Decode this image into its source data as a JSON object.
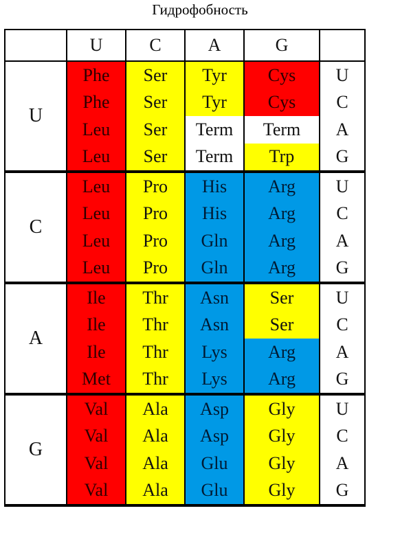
{
  "title": "Гидрофобность",
  "header": [
    "U",
    "C",
    "A",
    "G"
  ],
  "colors": {
    "red": "#ff0000",
    "yellow": "#ffff00",
    "blue": "#0099e6",
    "white": "#ffffff"
  },
  "blocks": [
    {
      "first": "U",
      "rows": [
        {
          "cells": [
            {
              "aa": "Phe",
              "color": "red"
            },
            {
              "aa": "Ser",
              "color": "yellow"
            },
            {
              "aa": "Tyr",
              "color": "yellow"
            },
            {
              "aa": "Cys",
              "color": "red"
            }
          ],
          "third": "U"
        },
        {
          "cells": [
            {
              "aa": "Phe",
              "color": "red"
            },
            {
              "aa": "Ser",
              "color": "yellow"
            },
            {
              "aa": "Tyr",
              "color": "yellow"
            },
            {
              "aa": "Cys",
              "color": "red"
            }
          ],
          "third": "C"
        },
        {
          "cells": [
            {
              "aa": "Leu",
              "color": "red"
            },
            {
              "aa": "Ser",
              "color": "yellow"
            },
            {
              "aa": "Term",
              "color": "white"
            },
            {
              "aa": "Term",
              "color": "white"
            }
          ],
          "third": "A"
        },
        {
          "cells": [
            {
              "aa": "Leu",
              "color": "red"
            },
            {
              "aa": "Ser",
              "color": "yellow"
            },
            {
              "aa": "Term",
              "color": "white"
            },
            {
              "aa": "Trp",
              "color": "yellow"
            }
          ],
          "third": "G"
        }
      ]
    },
    {
      "first": "C",
      "rows": [
        {
          "cells": [
            {
              "aa": "Leu",
              "color": "red"
            },
            {
              "aa": "Pro",
              "color": "yellow"
            },
            {
              "aa": "His",
              "color": "blue"
            },
            {
              "aa": "Arg",
              "color": "blue"
            }
          ],
          "third": "U"
        },
        {
          "cells": [
            {
              "aa": "Leu",
              "color": "red"
            },
            {
              "aa": "Pro",
              "color": "yellow"
            },
            {
              "aa": "His",
              "color": "blue"
            },
            {
              "aa": "Arg",
              "color": "blue"
            }
          ],
          "third": "C"
        },
        {
          "cells": [
            {
              "aa": "Leu",
              "color": "red"
            },
            {
              "aa": "Pro",
              "color": "yellow"
            },
            {
              "aa": "Gln",
              "color": "blue"
            },
            {
              "aa": "Arg",
              "color": "blue"
            }
          ],
          "third": "A"
        },
        {
          "cells": [
            {
              "aa": "Leu",
              "color": "red"
            },
            {
              "aa": "Pro",
              "color": "yellow"
            },
            {
              "aa": "Gln",
              "color": "blue"
            },
            {
              "aa": "Arg",
              "color": "blue"
            }
          ],
          "third": "G"
        }
      ]
    },
    {
      "first": "A",
      "rows": [
        {
          "cells": [
            {
              "aa": "Ile",
              "color": "red"
            },
            {
              "aa": "Thr",
              "color": "yellow"
            },
            {
              "aa": "Asn",
              "color": "blue"
            },
            {
              "aa": "Ser",
              "color": "yellow"
            }
          ],
          "third": "U"
        },
        {
          "cells": [
            {
              "aa": "Ile",
              "color": "red"
            },
            {
              "aa": "Thr",
              "color": "yellow"
            },
            {
              "aa": "Asn",
              "color": "blue"
            },
            {
              "aa": "Ser",
              "color": "yellow"
            }
          ],
          "third": "C"
        },
        {
          "cells": [
            {
              "aa": "Ile",
              "color": "red"
            },
            {
              "aa": "Thr",
              "color": "yellow"
            },
            {
              "aa": "Lys",
              "color": "blue"
            },
            {
              "aa": "Arg",
              "color": "blue"
            }
          ],
          "third": "A"
        },
        {
          "cells": [
            {
              "aa": "Met",
              "color": "red"
            },
            {
              "aa": "Thr",
              "color": "yellow"
            },
            {
              "aa": "Lys",
              "color": "blue"
            },
            {
              "aa": "Arg",
              "color": "blue"
            }
          ],
          "third": "G"
        }
      ]
    },
    {
      "first": "G",
      "rows": [
        {
          "cells": [
            {
              "aa": "Val",
              "color": "red"
            },
            {
              "aa": "Ala",
              "color": "yellow"
            },
            {
              "aa": "Asp",
              "color": "blue"
            },
            {
              "aa": "Gly",
              "color": "yellow"
            }
          ],
          "third": "U"
        },
        {
          "cells": [
            {
              "aa": "Val",
              "color": "red"
            },
            {
              "aa": "Ala",
              "color": "yellow"
            },
            {
              "aa": "Asp",
              "color": "blue"
            },
            {
              "aa": "Gly",
              "color": "yellow"
            }
          ],
          "third": "C"
        },
        {
          "cells": [
            {
              "aa": "Val",
              "color": "red"
            },
            {
              "aa": "Ala",
              "color": "yellow"
            },
            {
              "aa": "Glu",
              "color": "blue"
            },
            {
              "aa": "Gly",
              "color": "yellow"
            }
          ],
          "third": "A"
        },
        {
          "cells": [
            {
              "aa": "Val",
              "color": "red"
            },
            {
              "aa": "Ala",
              "color": "yellow"
            },
            {
              "aa": "Glu",
              "color": "blue"
            },
            {
              "aa": "Gly",
              "color": "yellow"
            }
          ],
          "third": "G"
        }
      ]
    }
  ]
}
